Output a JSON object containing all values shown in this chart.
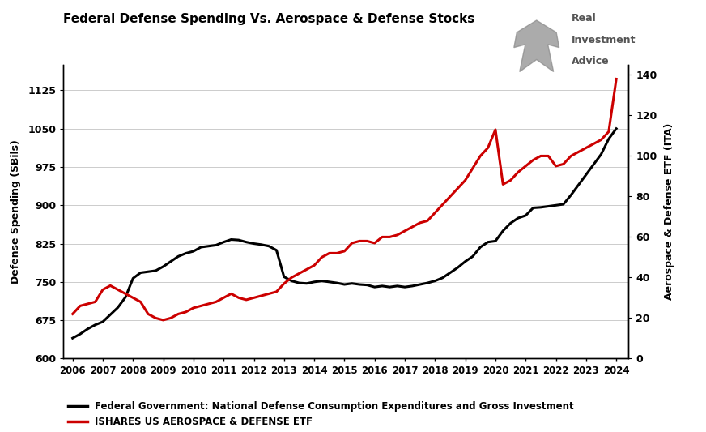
{
  "title": "Federal Defense Spending Vs. Aerospace & Defense Stocks",
  "ylabel_left": "Defense Spending ($Bils)",
  "ylabel_right": "Aerospace & Defense ETF (ITA)",
  "legend1": "Federal Government: National Defense Consumption Expenditures and Gross Investment",
  "legend2": "ISHARES US AEROSPACE & DEFENSE ETF",
  "background_color": "#ffffff",
  "left_ylim": [
    600,
    1175
  ],
  "right_ylim": [
    0,
    145
  ],
  "left_yticks": [
    600,
    675,
    750,
    825,
    900,
    975,
    1050,
    1125
  ],
  "right_yticks": [
    0,
    20,
    40,
    60,
    80,
    100,
    120,
    140
  ],
  "xticks": [
    2006,
    2007,
    2008,
    2009,
    2010,
    2011,
    2012,
    2013,
    2014,
    2015,
    2016,
    2017,
    2018,
    2019,
    2020,
    2021,
    2022,
    2023,
    2024
  ],
  "xlim": [
    2005.7,
    2024.4
  ],
  "defense_spending_x": [
    2006.0,
    2006.25,
    2006.5,
    2006.75,
    2007.0,
    2007.25,
    2007.5,
    2007.75,
    2008.0,
    2008.25,
    2008.5,
    2008.75,
    2009.0,
    2009.25,
    2009.5,
    2009.75,
    2010.0,
    2010.25,
    2010.5,
    2010.75,
    2011.0,
    2011.25,
    2011.5,
    2011.75,
    2012.0,
    2012.25,
    2012.5,
    2012.75,
    2013.0,
    2013.25,
    2013.5,
    2013.75,
    2014.0,
    2014.25,
    2014.5,
    2014.75,
    2015.0,
    2015.25,
    2015.5,
    2015.75,
    2016.0,
    2016.25,
    2016.5,
    2016.75,
    2017.0,
    2017.25,
    2017.5,
    2017.75,
    2018.0,
    2018.25,
    2018.5,
    2018.75,
    2019.0,
    2019.25,
    2019.5,
    2019.75,
    2020.0,
    2020.25,
    2020.5,
    2020.75,
    2021.0,
    2021.25,
    2021.5,
    2021.75,
    2022.0,
    2022.25,
    2022.5,
    2022.75,
    2023.0,
    2023.25,
    2023.5,
    2023.75,
    2024.0
  ],
  "defense_spending_y": [
    640,
    648,
    658,
    666,
    672,
    686,
    700,
    720,
    757,
    768,
    770,
    772,
    780,
    790,
    800,
    806,
    810,
    818,
    820,
    822,
    828,
    833,
    832,
    828,
    825,
    823,
    820,
    812,
    760,
    752,
    748,
    747,
    750,
    752,
    750,
    748,
    745,
    747,
    745,
    744,
    740,
    742,
    740,
    742,
    740,
    742,
    745,
    748,
    752,
    758,
    768,
    778,
    790,
    800,
    818,
    828,
    830,
    850,
    865,
    875,
    880,
    895,
    896,
    898,
    900,
    902,
    920,
    940,
    960,
    980,
    1000,
    1030,
    1050
  ],
  "ita_x": [
    2006.0,
    2006.25,
    2006.5,
    2006.75,
    2007.0,
    2007.25,
    2007.5,
    2007.75,
    2008.0,
    2008.25,
    2008.5,
    2008.75,
    2009.0,
    2009.25,
    2009.5,
    2009.75,
    2010.0,
    2010.25,
    2010.5,
    2010.75,
    2011.0,
    2011.25,
    2011.5,
    2011.75,
    2012.0,
    2012.25,
    2012.5,
    2012.75,
    2013.0,
    2013.25,
    2013.5,
    2013.75,
    2014.0,
    2014.25,
    2014.5,
    2014.75,
    2015.0,
    2015.25,
    2015.5,
    2015.75,
    2016.0,
    2016.25,
    2016.5,
    2016.75,
    2017.0,
    2017.25,
    2017.5,
    2017.75,
    2018.0,
    2018.25,
    2018.5,
    2018.75,
    2019.0,
    2019.25,
    2019.5,
    2019.75,
    2020.0,
    2020.25,
    2020.5,
    2020.75,
    2021.0,
    2021.25,
    2021.5,
    2021.75,
    2022.0,
    2022.25,
    2022.5,
    2022.75,
    2023.0,
    2023.25,
    2023.5,
    2023.75,
    2024.0
  ],
  "ita_y": [
    22,
    26,
    27,
    28,
    34,
    36,
    34,
    32,
    30,
    28,
    22,
    20,
    19,
    20,
    22,
    23,
    25,
    26,
    27,
    28,
    30,
    32,
    30,
    29,
    30,
    31,
    32,
    33,
    37,
    40,
    42,
    44,
    46,
    50,
    52,
    52,
    53,
    57,
    58,
    58,
    57,
    60,
    60,
    61,
    63,
    65,
    67,
    68,
    72,
    76,
    80,
    84,
    88,
    94,
    100,
    104,
    113,
    86,
    88,
    92,
    95,
    98,
    100,
    100,
    95,
    96,
    100,
    102,
    104,
    106,
    108,
    112,
    138
  ],
  "line_color_black": "#000000",
  "line_color_red": "#cc0000",
  "line_width": 2.2,
  "ria_text1": "Real",
  "ria_text2": "Investment",
  "ria_text3": "Advice"
}
